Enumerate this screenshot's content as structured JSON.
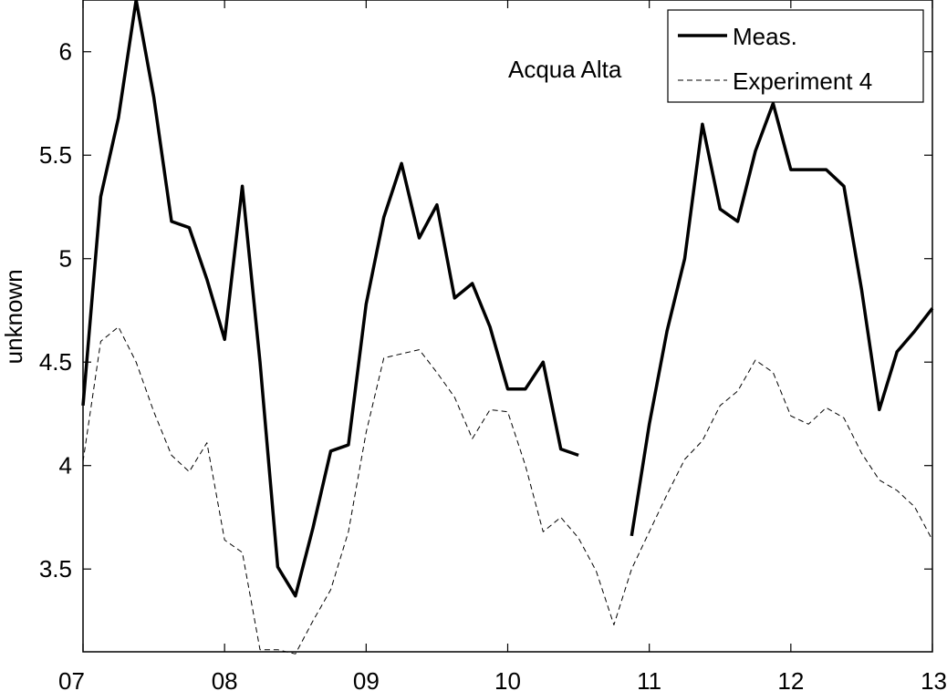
{
  "chart_data": {
    "type": "line",
    "title": "",
    "xlabel": "",
    "ylabel": "unknown",
    "annotation": "Acqua Alta",
    "xlim": [
      7,
      13
    ],
    "ylim": [
      3.1,
      6.25
    ],
    "x_tick_values": [
      7,
      8,
      9,
      10,
      11,
      12,
      13
    ],
    "x_tick_labels": [
      "07",
      "08",
      "09",
      "10",
      "11",
      "12",
      "13"
    ],
    "y_tick_values": [
      3.5,
      4,
      4.5,
      5,
      5.5,
      6
    ],
    "y_tick_labels": [
      "3.5",
      "4",
      "4.5",
      "5",
      "5.5",
      "6"
    ],
    "grid": false,
    "legend_position": "top-right",
    "series": [
      {
        "name": "Meas.",
        "style": "solid",
        "color": "#000000",
        "segments": [
          [
            [
              7.0,
              4.29
            ],
            [
              7.125,
              5.3
            ],
            [
              7.25,
              5.68
            ],
            [
              7.375,
              6.25
            ],
            [
              7.5,
              5.78
            ],
            [
              7.625,
              5.18
            ],
            [
              7.75,
              5.15
            ],
            [
              7.875,
              4.9
            ],
            [
              8.0,
              4.61
            ],
            [
              8.125,
              5.35
            ],
            [
              8.25,
              4.5
            ],
            [
              8.375,
              3.51
            ],
            [
              8.5,
              3.37
            ],
            [
              8.625,
              3.7
            ],
            [
              8.75,
              4.07
            ],
            [
              8.875,
              4.1
            ],
            [
              9.0,
              4.78
            ],
            [
              9.125,
              5.2
            ],
            [
              9.25,
              5.46
            ],
            [
              9.375,
              5.1
            ],
            [
              9.5,
              5.26
            ],
            [
              9.625,
              4.81
            ],
            [
              9.75,
              4.88
            ],
            [
              9.875,
              4.67
            ],
            [
              10.0,
              4.37
            ],
            [
              10.125,
              4.37
            ],
            [
              10.25,
              4.5
            ],
            [
              10.375,
              4.08
            ],
            [
              10.5,
              4.05
            ]
          ],
          [
            [
              10.875,
              3.66
            ],
            [
              11.0,
              4.2
            ],
            [
              11.125,
              4.65
            ],
            [
              11.25,
              5.0
            ],
            [
              11.375,
              5.65
            ],
            [
              11.5,
              5.24
            ],
            [
              11.625,
              5.18
            ],
            [
              11.75,
              5.52
            ],
            [
              11.875,
              5.75
            ],
            [
              12.0,
              5.43
            ],
            [
              12.125,
              5.43
            ],
            [
              12.25,
              5.43
            ],
            [
              12.375,
              5.35
            ],
            [
              12.5,
              4.85
            ],
            [
              12.625,
              4.27
            ],
            [
              12.75,
              4.55
            ],
            [
              12.875,
              4.65
            ],
            [
              13.0,
              4.76
            ]
          ]
        ]
      },
      {
        "name": "Experiment 4",
        "style": "dashed",
        "color": "#000000",
        "segments": [
          [
            [
              7.0,
              4.02
            ],
            [
              7.125,
              4.6
            ],
            [
              7.25,
              4.67
            ],
            [
              7.375,
              4.5
            ],
            [
              7.5,
              4.26
            ],
            [
              7.625,
              4.05
            ],
            [
              7.75,
              3.97
            ],
            [
              7.875,
              4.11
            ],
            [
              8.0,
              3.64
            ],
            [
              8.125,
              3.58
            ],
            [
              8.25,
              3.11
            ],
            [
              8.375,
              3.11
            ],
            [
              8.5,
              3.09
            ],
            [
              8.625,
              3.25
            ],
            [
              8.75,
              3.4
            ],
            [
              8.875,
              3.68
            ],
            [
              9.0,
              4.16
            ],
            [
              9.125,
              4.52
            ],
            [
              9.25,
              4.54
            ],
            [
              9.375,
              4.56
            ],
            [
              9.5,
              4.45
            ],
            [
              9.625,
              4.33
            ],
            [
              9.75,
              4.13
            ],
            [
              9.875,
              4.27
            ],
            [
              10.0,
              4.26
            ],
            [
              10.125,
              4.0
            ],
            [
              10.25,
              3.68
            ],
            [
              10.375,
              3.75
            ],
            [
              10.5,
              3.65
            ],
            [
              10.625,
              3.49
            ],
            [
              10.75,
              3.23
            ],
            [
              10.875,
              3.5
            ],
            [
              11.0,
              3.68
            ],
            [
              11.125,
              3.86
            ],
            [
              11.25,
              4.03
            ],
            [
              11.375,
              4.12
            ],
            [
              11.5,
              4.29
            ],
            [
              11.625,
              4.36
            ],
            [
              11.75,
              4.51
            ],
            [
              11.875,
              4.45
            ],
            [
              12.0,
              4.24
            ],
            [
              12.125,
              4.2
            ],
            [
              12.25,
              4.28
            ],
            [
              12.375,
              4.23
            ],
            [
              12.5,
              4.06
            ],
            [
              12.625,
              3.93
            ],
            [
              12.75,
              3.88
            ],
            [
              12.875,
              3.8
            ],
            [
              13.0,
              3.64
            ]
          ]
        ]
      }
    ]
  }
}
